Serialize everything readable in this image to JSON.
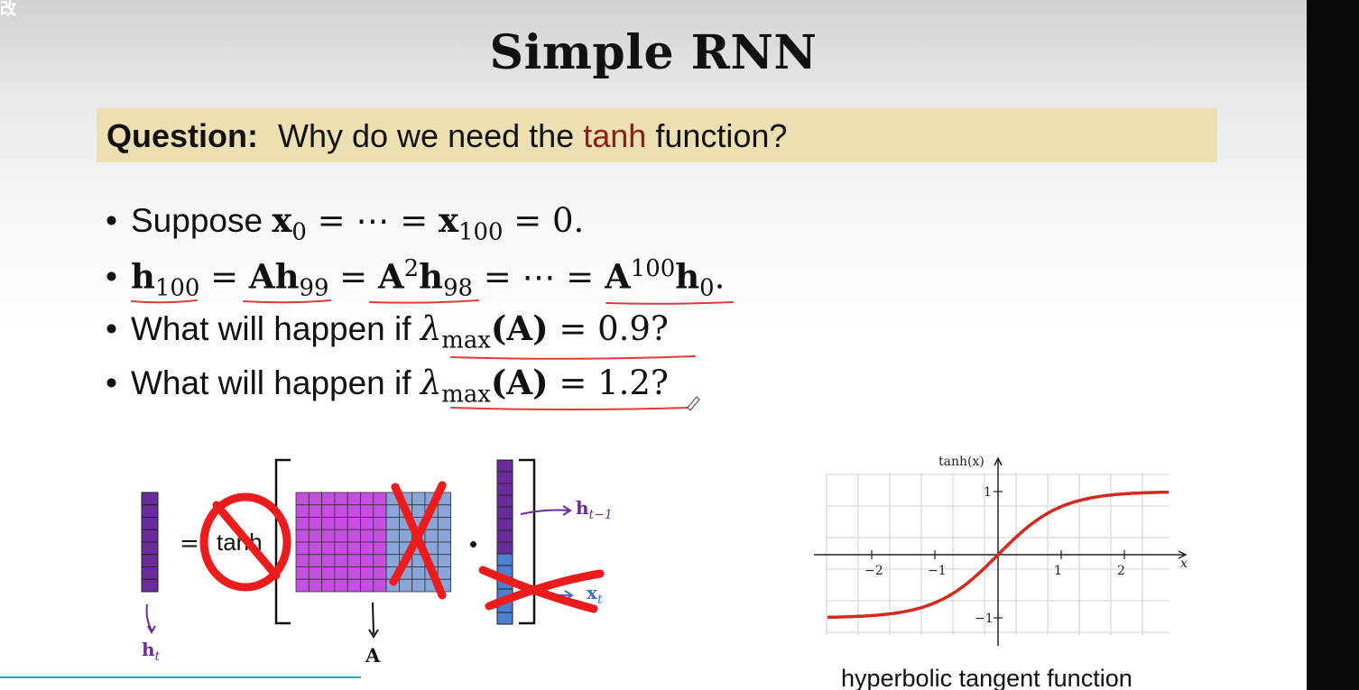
{
  "title": "Simple RNN",
  "question": {
    "label": "Question:",
    "text_before": "Why do we need the",
    "accent_word": "tanh",
    "text_after": "function?",
    "accent_color": "#8e1c1c"
  },
  "bullets": {
    "b1": {
      "text": "Suppose",
      "x0": "x",
      "x0_sub": "0",
      "eq": " = ⋯ = ",
      "x100": "x",
      "x100_sub": "100",
      "end": " = 0."
    },
    "b2": {
      "h100": "h",
      "h100_sub": "100",
      "eq1": " = ",
      "Ah": "Ah",
      "Ah_sub": "99",
      "eq2": " = ",
      "A2": "A",
      "A2_sup": "2",
      "h98": "h",
      "h98_sub": "98",
      "eq3": " = ⋯ = ",
      "A100": "A",
      "A100_sup": "100",
      "h0": "h",
      "h0_sub": "0",
      "end": "."
    },
    "b3": {
      "text": "What will happen if",
      "lambda": "λ",
      "lambda_sub": "max",
      "paren": "(A)",
      "value": " = 0.9?"
    },
    "b4": {
      "text": "What will happen if",
      "lambda": "λ",
      "lambda_sub": "max",
      "paren": "(A)",
      "value": " = 1.2?"
    }
  },
  "diagram": {
    "equals": "=",
    "tanh": "tanh",
    "dot": "•",
    "h_t": "h",
    "h_t_sub": "t",
    "A_label": "A",
    "h_prev": "h",
    "h_prev_sub": "t−1",
    "x_t": "x",
    "x_t_sub": "t",
    "colors": {
      "purple": "#6a2c9a",
      "magenta": "#c44fe0",
      "blue": "#4f7fcf",
      "light_blue": "#8aa6d8",
      "red_ink": "#ec1c1c"
    }
  },
  "tanh_plot": {
    "ylabel": "tanh(x)",
    "xlabel": "x",
    "x_ticks": [
      "−2",
      "−1",
      "1",
      "2"
    ],
    "y_ticks": [
      "1",
      "−1"
    ],
    "curve_color": "#d42a1e",
    "caption": "hyperbolic tangent function"
  },
  "chart_data": {
    "type": "line",
    "function": "tanh(x)",
    "x_range": [
      -2.7,
      2.7
    ],
    "y_range": [
      -1.3,
      1.3
    ],
    "grid": true
  }
}
